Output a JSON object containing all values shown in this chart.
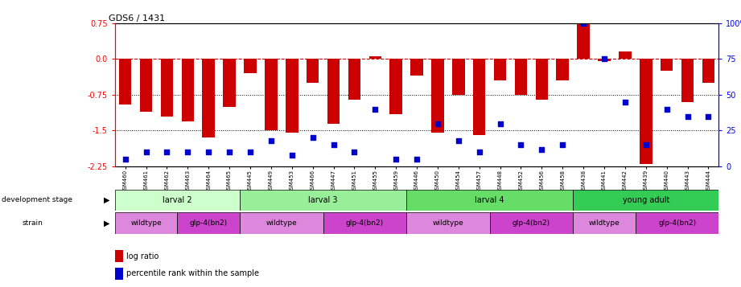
{
  "title": "GDS6 / 1431",
  "samples": [
    "GSM460",
    "GSM461",
    "GSM462",
    "GSM463",
    "GSM464",
    "GSM465",
    "GSM445",
    "GSM449",
    "GSM453",
    "GSM466",
    "GSM447",
    "GSM451",
    "GSM455",
    "GSM459",
    "GSM446",
    "GSM450",
    "GSM454",
    "GSM457",
    "GSM448",
    "GSM452",
    "GSM456",
    "GSM458",
    "GSM438",
    "GSM441",
    "GSM442",
    "GSM439",
    "GSM440",
    "GSM443",
    "GSM444"
  ],
  "log_ratio": [
    -0.95,
    -1.1,
    -1.2,
    -1.3,
    -1.65,
    -1.0,
    -0.3,
    -1.5,
    -1.55,
    -0.5,
    -1.35,
    -0.85,
    0.05,
    -1.15,
    -0.35,
    -1.55,
    -0.75,
    -1.6,
    -0.45,
    -0.75,
    -0.85,
    -0.45,
    0.72,
    -0.05,
    0.15,
    -2.2,
    -0.25,
    -0.9,
    -0.5
  ],
  "percentile": [
    5,
    10,
    10,
    10,
    10,
    10,
    10,
    18,
    8,
    20,
    15,
    10,
    40,
    5,
    5,
    30,
    18,
    10,
    30,
    15,
    12,
    15,
    100,
    75,
    45,
    15,
    40,
    35,
    35
  ],
  "bar_color": "#cc0000",
  "dot_color": "#0000cc",
  "ylim_left": [
    -2.25,
    0.75
  ],
  "ylim_right": [
    0,
    100
  ],
  "yticks_left": [
    0.75,
    0.0,
    -0.75,
    -1.5,
    -2.25
  ],
  "yticks_right": [
    100,
    75,
    50,
    25,
    0
  ],
  "hline_y": 0.0,
  "dotted_lines": [
    -0.75,
    -1.5
  ],
  "development_stages": [
    {
      "label": "larval 2",
      "start": 0,
      "end": 6,
      "color": "#ccffcc"
    },
    {
      "label": "larval 3",
      "start": 6,
      "end": 14,
      "color": "#99ee99"
    },
    {
      "label": "larval 4",
      "start": 14,
      "end": 22,
      "color": "#66dd66"
    },
    {
      "label": "young adult",
      "start": 22,
      "end": 29,
      "color": "#33cc55"
    }
  ],
  "strains": [
    {
      "label": "wildtype",
      "start": 0,
      "end": 3,
      "color": "#dd88dd"
    },
    {
      "label": "glp-4(bn2)",
      "start": 3,
      "end": 6,
      "color": "#cc44cc"
    },
    {
      "label": "wildtype",
      "start": 6,
      "end": 10,
      "color": "#dd88dd"
    },
    {
      "label": "glp-4(bn2)",
      "start": 10,
      "end": 14,
      "color": "#cc44cc"
    },
    {
      "label": "wildtype",
      "start": 14,
      "end": 18,
      "color": "#dd88dd"
    },
    {
      "label": "glp-4(bn2)",
      "start": 18,
      "end": 22,
      "color": "#cc44cc"
    },
    {
      "label": "wildtype",
      "start": 22,
      "end": 25,
      "color": "#dd88dd"
    },
    {
      "label": "glp-4(bn2)",
      "start": 25,
      "end": 29,
      "color": "#cc44cc"
    }
  ]
}
